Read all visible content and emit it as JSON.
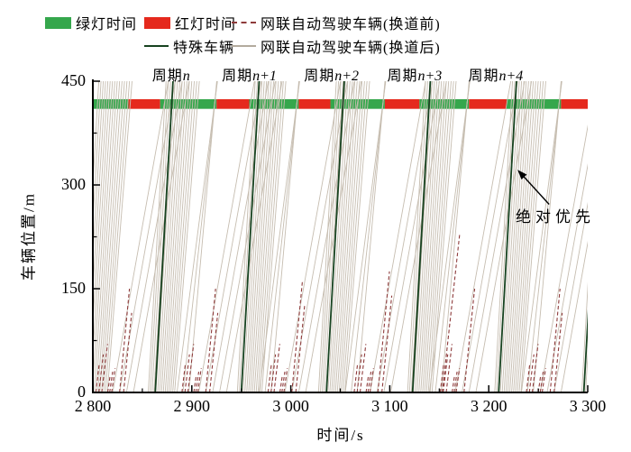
{
  "legend": {
    "items": [
      {
        "label": "绿灯时间",
        "marker": "green-rect"
      },
      {
        "label": "红灯时间",
        "marker": "red-rect"
      },
      {
        "label": "网联自动驾驶车辆(换道前)",
        "marker": "dashed-darkred-line"
      },
      {
        "label": "特殊车辆",
        "marker": "darkgreen-line"
      },
      {
        "label": "网联自动驾驶车辆(换道后)",
        "marker": "gray-line"
      }
    ]
  },
  "chart_data": {
    "type": "line",
    "subtype": "time-space-trajectory-diagram",
    "xlabel": "时间/s",
    "ylabel": "车辆位置/m",
    "xlim": [
      2800,
      3300
    ],
    "ylim": [
      0,
      450
    ],
    "x_ticks": [
      2800,
      2900,
      3000,
      3100,
      3200,
      3300
    ],
    "x_tick_labels": [
      "2 800",
      "2 900",
      "3 000",
      "3 100",
      "3 200",
      "3 300"
    ],
    "x_minor_ticks": [
      2850,
      2950,
      3050,
      3150,
      3250
    ],
    "y_ticks": [
      0,
      150,
      300,
      450
    ],
    "y_tick_labels": [
      "0",
      "150",
      "300",
      "450"
    ],
    "y_minor_ticks": [
      75,
      225,
      375
    ],
    "grid": false,
    "legend_position": "top",
    "periods": [
      {
        "prefix": "周期",
        "suffix": "n",
        "t": 2879
      },
      {
        "prefix": "周期",
        "suffix": "n+1",
        "t": 2958
      },
      {
        "prefix": "周期",
        "suffix": "n+2",
        "t": 3041
      },
      {
        "prefix": "周期",
        "suffix": "n+3",
        "t": 3125
      },
      {
        "prefix": "周期",
        "suffix": "n+4",
        "t": 3207
      }
    ],
    "signal_band": {
      "y0": 410,
      "y1": 424,
      "segments": [
        {
          "t0": 2800,
          "t1": 2836,
          "state": "green"
        },
        {
          "t0": 2836,
          "t1": 2868,
          "state": "red"
        },
        {
          "t0": 2868,
          "t1": 2925,
          "state": "green"
        },
        {
          "t0": 2925,
          "t1": 2958,
          "state": "red"
        },
        {
          "t0": 2958,
          "t1": 3008,
          "state": "green"
        },
        {
          "t0": 3008,
          "t1": 3040,
          "state": "red"
        },
        {
          "t0": 3040,
          "t1": 3095,
          "state": "green"
        },
        {
          "t0": 3095,
          "t1": 3130,
          "state": "red"
        },
        {
          "t0": 3130,
          "t1": 3180,
          "state": "green"
        },
        {
          "t0": 3180,
          "t1": 3218,
          "state": "red"
        },
        {
          "t0": 3218,
          "t1": 3273,
          "state": "green"
        },
        {
          "t0": 3273,
          "t1": 3300,
          "state": "red"
        }
      ]
    },
    "special_vehicles": {
      "speed_mps": 25,
      "departures": [
        2863,
        2950,
        3036,
        3123,
        3210,
        3296
      ]
    },
    "cav_after": {
      "speed_decay": 0.5,
      "bundles": [
        {
          "depart_start": 2788,
          "count": 15,
          "headway": 1.9,
          "speed": 25
        },
        {
          "depart_start": 2856,
          "count": 15,
          "headway": 1.9,
          "speed": 25
        },
        {
          "depart_start": 2946,
          "count": 14,
          "headway": 1.9,
          "speed": 25
        },
        {
          "depart_start": 3028,
          "count": 15,
          "headway": 1.9,
          "speed": 25
        },
        {
          "depart_start": 3118,
          "count": 14,
          "headway": 1.9,
          "speed": 25
        },
        {
          "depart_start": 3206,
          "count": 15,
          "headway": 1.9,
          "speed": 25
        },
        {
          "depart_start": 3294,
          "count": 6,
          "headway": 1.9,
          "speed": 25
        }
      ],
      "slow_groups": [
        {
          "depart_start": 2820,
          "count": 4,
          "headway": 7,
          "speed": 8
        },
        {
          "depart_start": 2907,
          "count": 5,
          "headway": 7,
          "speed": 8
        },
        {
          "depart_start": 2994,
          "count": 4,
          "headway": 7,
          "speed": 8
        },
        {
          "depart_start": 3080,
          "count": 4,
          "headway": 7,
          "speed": 8
        },
        {
          "depart_start": 3166,
          "count": 4,
          "headway": 7,
          "speed": 8
        },
        {
          "depart_start": 3252,
          "count": 4,
          "headway": 7,
          "speed": 8
        }
      ],
      "stragglers": [
        {
          "t": 2897,
          "speed": 16
        },
        {
          "t": 2891,
          "speed": 13
        },
        {
          "t": 2885,
          "speed": 11
        },
        {
          "t": 2980,
          "speed": 16
        },
        {
          "t": 2974,
          "speed": 13
        },
        {
          "t": 2968,
          "speed": 11
        },
        {
          "t": 3067,
          "speed": 16
        },
        {
          "t": 3061,
          "speed": 13
        },
        {
          "t": 3055,
          "speed": 11
        },
        {
          "t": 3152,
          "speed": 16
        },
        {
          "t": 3146,
          "speed": 13
        },
        {
          "t": 3140,
          "speed": 11
        },
        {
          "t": 3245,
          "speed": 16
        },
        {
          "t": 3239,
          "speed": 13
        },
        {
          "t": 3233,
          "speed": 11
        }
      ]
    },
    "cav_before": [
      {
        "t": 2803,
        "y": 40,
        "v": 12
      },
      {
        "t": 2806,
        "y": 55,
        "v": 12
      },
      {
        "t": 2809,
        "y": 70,
        "v": 12
      },
      {
        "t": 2815,
        "y": 25,
        "v": 10
      },
      {
        "t": 2817,
        "y": 30,
        "v": 10
      },
      {
        "t": 2819,
        "y": 35,
        "v": 10
      },
      {
        "t": 2827,
        "y": 150,
        "v": 15
      },
      {
        "t": 2831,
        "y": 115,
        "v": 14
      },
      {
        "t": 2890,
        "y": 40,
        "v": 12
      },
      {
        "t": 2893,
        "y": 55,
        "v": 12
      },
      {
        "t": 2896,
        "y": 70,
        "v": 12
      },
      {
        "t": 2902,
        "y": 25,
        "v": 10
      },
      {
        "t": 2904,
        "y": 30,
        "v": 10
      },
      {
        "t": 2906,
        "y": 35,
        "v": 10
      },
      {
        "t": 2914,
        "y": 150,
        "v": 15
      },
      {
        "t": 2918,
        "y": 115,
        "v": 14
      },
      {
        "t": 2977,
        "y": 40,
        "v": 12
      },
      {
        "t": 2980,
        "y": 55,
        "v": 12
      },
      {
        "t": 2983,
        "y": 70,
        "v": 12
      },
      {
        "t": 2989,
        "y": 25,
        "v": 10
      },
      {
        "t": 2991,
        "y": 30,
        "v": 10
      },
      {
        "t": 2993,
        "y": 35,
        "v": 10
      },
      {
        "t": 3001,
        "y": 160,
        "v": 15
      },
      {
        "t": 3005,
        "y": 125,
        "v": 14
      },
      {
        "t": 3064,
        "y": 40,
        "v": 12
      },
      {
        "t": 3067,
        "y": 55,
        "v": 12
      },
      {
        "t": 3070,
        "y": 70,
        "v": 12
      },
      {
        "t": 3076,
        "y": 25,
        "v": 10
      },
      {
        "t": 3078,
        "y": 30,
        "v": 10
      },
      {
        "t": 3080,
        "y": 35,
        "v": 10
      },
      {
        "t": 3088,
        "y": 175,
        "v": 15
      },
      {
        "t": 3092,
        "y": 140,
        "v": 14
      },
      {
        "t": 3151,
        "y": 40,
        "v": 12
      },
      {
        "t": 3154,
        "y": 55,
        "v": 12
      },
      {
        "t": 3157,
        "y": 70,
        "v": 12
      },
      {
        "t": 3163,
        "y": 25,
        "v": 10
      },
      {
        "t": 3165,
        "y": 30,
        "v": 10
      },
      {
        "t": 3167,
        "y": 35,
        "v": 10
      },
      {
        "t": 3153,
        "y": 230,
        "v": 13
      },
      {
        "t": 3175,
        "y": 150,
        "v": 14
      },
      {
        "t": 3238,
        "y": 40,
        "v": 12
      },
      {
        "t": 3241,
        "y": 55,
        "v": 12
      },
      {
        "t": 3244,
        "y": 70,
        "v": 12
      },
      {
        "t": 3250,
        "y": 25,
        "v": 10
      },
      {
        "t": 3252,
        "y": 30,
        "v": 10
      },
      {
        "t": 3254,
        "y": 35,
        "v": 10
      },
      {
        "t": 3262,
        "y": 150,
        "v": 15
      },
      {
        "t": 3266,
        "y": 115,
        "v": 14
      }
    ],
    "annotation": {
      "text": "绝对优先",
      "arrow_tail": {
        "t": 3261,
        "y": 272
      },
      "arrow_head": {
        "t": 3229,
        "y": 322
      }
    },
    "colors": {
      "green": "#35a74c",
      "red": "#e5291d",
      "special": "#17421f",
      "cav_after": "#c6bdb0",
      "cav_before": "#8e3b3b",
      "axis": "#000000"
    }
  }
}
